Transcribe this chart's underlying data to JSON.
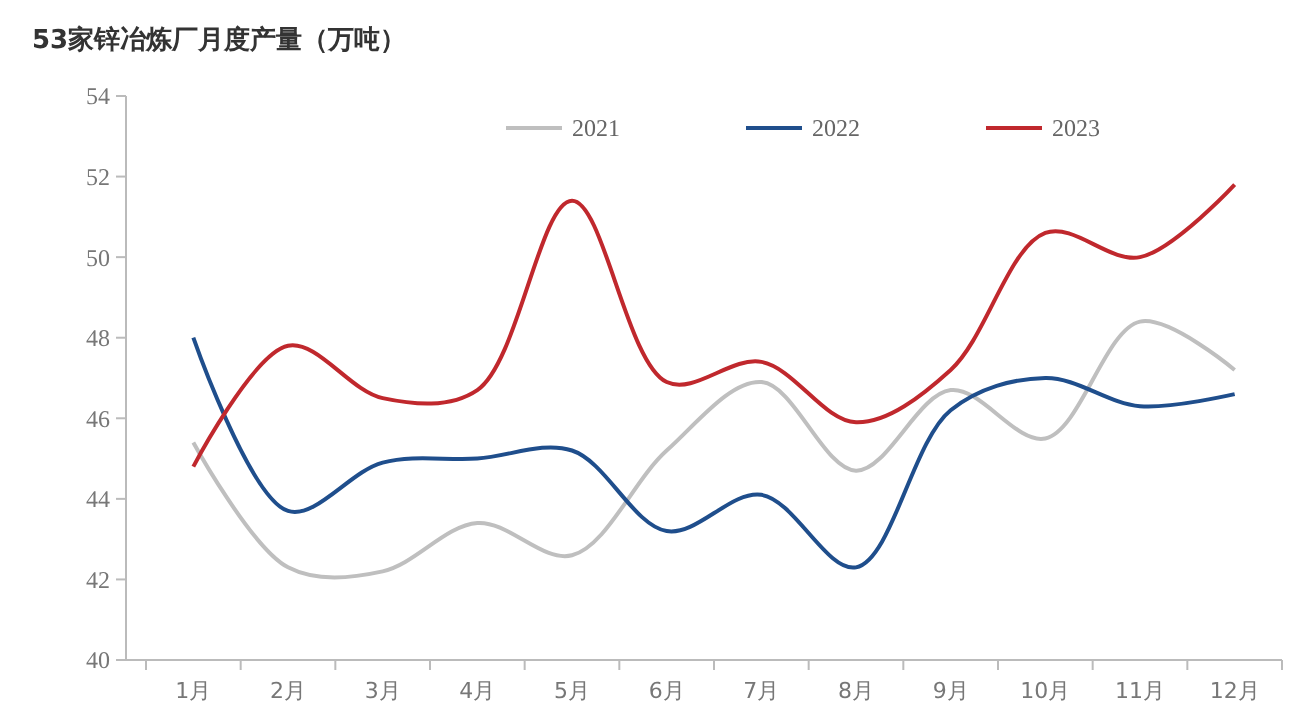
{
  "chart_data": {
    "type": "line",
    "title": "53家锌冶炼厂月度产量（万吨）",
    "categories": [
      "1月",
      "2月",
      "3月",
      "4月",
      "5月",
      "6月",
      "7月",
      "8月",
      "9月",
      "10月",
      "11月",
      "12月"
    ],
    "series": [
      {
        "name": "2021",
        "color": "#bfbfbf",
        "values": [
          45.4,
          42.3,
          42.2,
          43.4,
          42.6,
          45.2,
          46.9,
          44.7,
          46.7,
          45.5,
          48.4,
          47.2
        ]
      },
      {
        "name": "2022",
        "color": "#1f4e8c",
        "values": [
          48.0,
          43.7,
          44.9,
          45.0,
          45.2,
          43.2,
          44.1,
          42.3,
          46.2,
          47.0,
          46.3,
          46.6
        ]
      },
      {
        "name": "2023",
        "color": "#c0282d",
        "values": [
          44.8,
          47.8,
          46.5,
          46.7,
          51.4,
          46.9,
          47.4,
          45.9,
          47.2,
          50.6,
          50.0,
          51.8
        ]
      }
    ],
    "ylim": [
      40,
      54
    ],
    "yticks": [
      40,
      42,
      44,
      46,
      48,
      50,
      52,
      54
    ],
    "grid": false,
    "legend": "top",
    "marker": "none",
    "line_style": "solid"
  }
}
